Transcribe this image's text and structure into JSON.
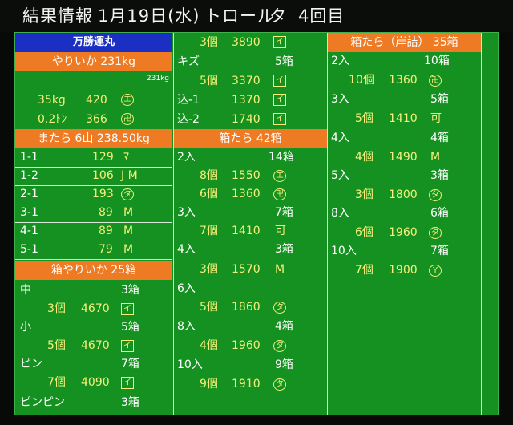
{
  "header": {
    "title": "結果情報",
    "date": "1月19日(水)",
    "method": "トロール",
    "session": "タ",
    "round": "4回目"
  },
  "col1": {
    "boat": "万勝運丸",
    "sec1": {
      "title": "やりいか 231kg",
      "note": "231kg",
      "rows": [
        {
          "label": "35kg",
          "price": "420",
          "icon": "エ",
          "shape": "circle"
        },
        {
          "label": "0.2ﾄﾝ",
          "price": "366",
          "icon": "卍",
          "shape": "circle"
        }
      ]
    },
    "sec2": {
      "title": "またら 6山 238.50kg",
      "rows": [
        {
          "label": "1-1",
          "price": "129",
          "icon": "ﾏ",
          "shape": "plain"
        },
        {
          "label": "1-2",
          "price": "106",
          "icon": "J M",
          "shape": "text"
        },
        {
          "label": "2-1",
          "price": "193",
          "icon": "タ",
          "shape": "circle"
        },
        {
          "label": "3-1",
          "price": "89",
          "icon": "M",
          "shape": "plain"
        },
        {
          "label": "4-1",
          "price": "89",
          "icon": "M",
          "shape": "plain"
        },
        {
          "label": "5-1",
          "price": "79",
          "icon": "M",
          "shape": "plain"
        }
      ]
    },
    "sec3": {
      "title": "箱やりいか 25箱",
      "items": [
        {
          "grade": "中",
          "boxes": "3箱",
          "count": "3個",
          "price": "4670",
          "icon": "イ",
          "shape": "box"
        },
        {
          "grade": "小",
          "boxes": "5箱",
          "count": "5個",
          "price": "4670",
          "icon": "イ",
          "shape": "box"
        },
        {
          "grade": "ピン",
          "boxes": "7箱",
          "count": "7個",
          "price": "4090",
          "icon": "イ",
          "shape": "box"
        },
        {
          "grade": "ピンピン",
          "boxes": "3箱"
        }
      ]
    }
  },
  "col2": {
    "top": [
      {
        "count": "3個",
        "price": "3890",
        "icon": "イ",
        "shape": "box"
      },
      {
        "grade": "キズ",
        "boxes": "5箱"
      },
      {
        "count": "5個",
        "price": "3370",
        "icon": "イ",
        "shape": "box"
      },
      {
        "grade": "込-1",
        "price": "1370",
        "icon": "イ",
        "shape": "box"
      },
      {
        "grade": "込-2",
        "price": "1740",
        "icon": "イ",
        "shape": "box"
      }
    ],
    "sec": {
      "title": "箱たら 42箱",
      "items": [
        {
          "grade": "2入",
          "boxes": "14箱",
          "count": "8個",
          "price": "1550",
          "icon": "エ",
          "shape": "circle"
        },
        {
          "count": "6個",
          "price": "1360",
          "icon": "卍",
          "shape": "circle"
        },
        {
          "grade": "3入",
          "boxes": "7箱",
          "count": "7個",
          "price": "1410",
          "icon": "可",
          "shape": "plain"
        },
        {
          "grade": "4入",
          "boxes": "3箱",
          "count": "3個",
          "price": "1570",
          "icon": "M",
          "shape": "plain"
        },
        {
          "grade": "6入",
          "boxes": "",
          "count": "5個",
          "price": "1860",
          "icon": "タ",
          "shape": "circle"
        },
        {
          "grade": "8入",
          "boxes": "4箱",
          "count": "4個",
          "price": "1960",
          "icon": "タ",
          "shape": "circle"
        },
        {
          "grade": "10入",
          "boxes": "9箱",
          "count": "9個",
          "price": "1910",
          "icon": "タ",
          "shape": "circle"
        }
      ]
    }
  },
  "col3": {
    "sec": {
      "title": "箱たら（岸詰） 35箱",
      "items": [
        {
          "grade": "2入",
          "boxes": "10箱",
          "count": "10個",
          "price": "1360",
          "icon": "卍",
          "shape": "circle"
        },
        {
          "grade": "3入",
          "boxes": "5箱",
          "count": "5個",
          "price": "1410",
          "icon": "可",
          "shape": "plain"
        },
        {
          "grade": "4入",
          "boxes": "4箱",
          "count": "4個",
          "price": "1490",
          "icon": "M",
          "shape": "plain"
        },
        {
          "grade": "5入",
          "boxes": "3箱",
          "count": "3個",
          "price": "1800",
          "icon": "タ",
          "shape": "circle"
        },
        {
          "grade": "8入",
          "boxes": "6箱",
          "count": "6個",
          "price": "1960",
          "icon": "タ",
          "shape": "circle"
        },
        {
          "grade": "10入",
          "boxes": "7箱",
          "count": "7個",
          "price": "1900",
          "icon": "Y",
          "shape": "circle"
        }
      ]
    }
  },
  "colors": {
    "board": "#149120",
    "orange": "#ee7b24",
    "blue": "#1b2fc2",
    "value": "#f5f07a"
  }
}
